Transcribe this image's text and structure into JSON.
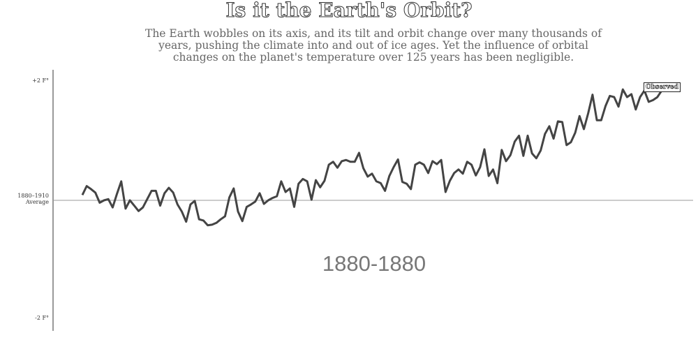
{
  "chart_data": {
    "type": "line",
    "title": "Is it the Earth's Orbit?",
    "subtitle": "The Earth wobbles on its axis, and its tilt and orbit change over many thousands of years, pushing the climate into and out of ice ages. Yet the influence of orbital changes on the planet's temperature over 125 years has been negligible.",
    "period_label": "1880-1880",
    "ylim": [
      -2.2,
      2.2
    ],
    "yticks": [
      {
        "value": 2,
        "label": "+2 F°"
      },
      {
        "value": 0,
        "label": "1880–1910 Average"
      },
      {
        "value": -2,
        "label": "-2 F°"
      }
    ],
    "series": [
      {
        "name": "Observed",
        "color": "#444444",
        "values": [
          0.09,
          0.24,
          0.19,
          0.13,
          -0.04,
          0,
          0.02,
          -0.12,
          0.11,
          0.32,
          -0.14,
          0,
          -0.09,
          -0.18,
          -0.12,
          0.02,
          0.16,
          0.16,
          -0.09,
          0.12,
          0.21,
          0.13,
          -0.07,
          -0.19,
          -0.36,
          -0.07,
          -0.01,
          -0.32,
          -0.34,
          -0.42,
          -0.41,
          -0.38,
          -0.32,
          -0.27,
          0.05,
          0.2,
          -0.19,
          -0.35,
          -0.11,
          -0.07,
          -0.02,
          0.12,
          -0.06,
          0,
          0.04,
          0.07,
          0.32,
          0.14,
          0.2,
          -0.11,
          0.28,
          0.36,
          0.32,
          0.01,
          0.34,
          0.22,
          0.33,
          0.6,
          0.65,
          0.55,
          0.66,
          0.68,
          0.65,
          0.65,
          0.8,
          0.54,
          0.4,
          0.45,
          0.32,
          0.29,
          0.16,
          0.41,
          0.56,
          0.69,
          0.31,
          0.28,
          0.19,
          0.6,
          0.64,
          0.6,
          0.46,
          0.66,
          0.61,
          0.68,
          0.14,
          0.33,
          0.46,
          0.52,
          0.45,
          0.65,
          0.6,
          0.42,
          0.56,
          0.86,
          0.41,
          0.52,
          0.29,
          0.85,
          0.66,
          0.76,
          0.99,
          1.09,
          0.75,
          1.09,
          0.79,
          0.71,
          0.84,
          1.12,
          1.25,
          1.04,
          1.33,
          1.32,
          0.93,
          0.98,
          1.14,
          1.42,
          1.2,
          1.47,
          1.78,
          1.35,
          1.35,
          1.59,
          1.76,
          1.74,
          1.58,
          1.87,
          1.74,
          1.79,
          1.53,
          1.74,
          1.85,
          1.66,
          1.69,
          1.74,
          1.85
        ]
      }
    ]
  }
}
